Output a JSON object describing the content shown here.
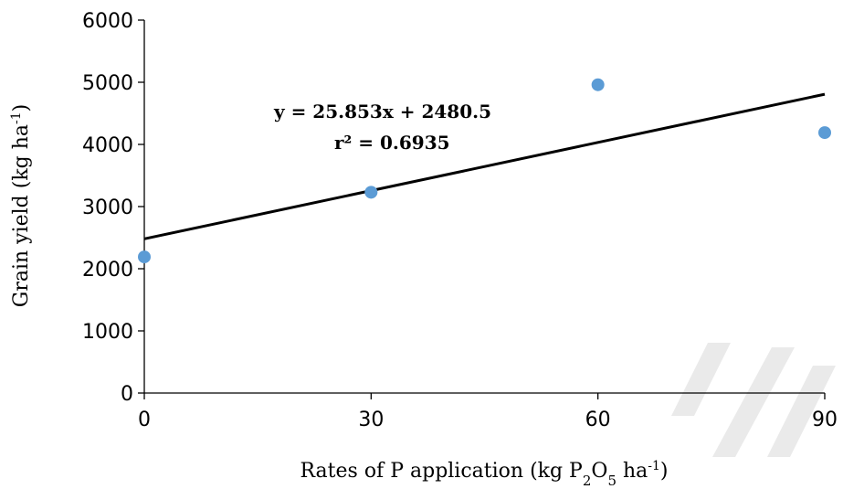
{
  "chart_data": {
    "type": "scatter",
    "title": "",
    "xlabel": {
      "prefix": "Rates of P application (kg P",
      "sub1": "2",
      "mid": "O",
      "sub2": "5",
      "mid2": " ha",
      "sup": "-1",
      "suffix": ")"
    },
    "ylabel": {
      "prefix": "Grain yield (kg ha",
      "sup": "-1",
      "suffix": ")"
    },
    "x_ticks": [
      "0",
      "30",
      "60",
      "90"
    ],
    "y_ticks": [
      "0",
      "1000",
      "2000",
      "3000",
      "4000",
      "5000",
      "6000"
    ],
    "xlim": [
      0,
      90
    ],
    "ylim": [
      0,
      6000
    ],
    "points": [
      {
        "x": 0,
        "y": 2190
      },
      {
        "x": 30,
        "y": 3230
      },
      {
        "x": 60,
        "y": 4960
      },
      {
        "x": 90,
        "y": 4190
      }
    ],
    "trendline": {
      "slope": 25.853,
      "intercept": 2480.5
    },
    "annotation": {
      "equation": "y = 25.853x + 2480.5",
      "r2": "r² = 0.6935"
    },
    "colors": {
      "point": "#5b9bd5",
      "trendline": "#000000",
      "axis": "#000000"
    },
    "grid": false,
    "legend": "none"
  }
}
